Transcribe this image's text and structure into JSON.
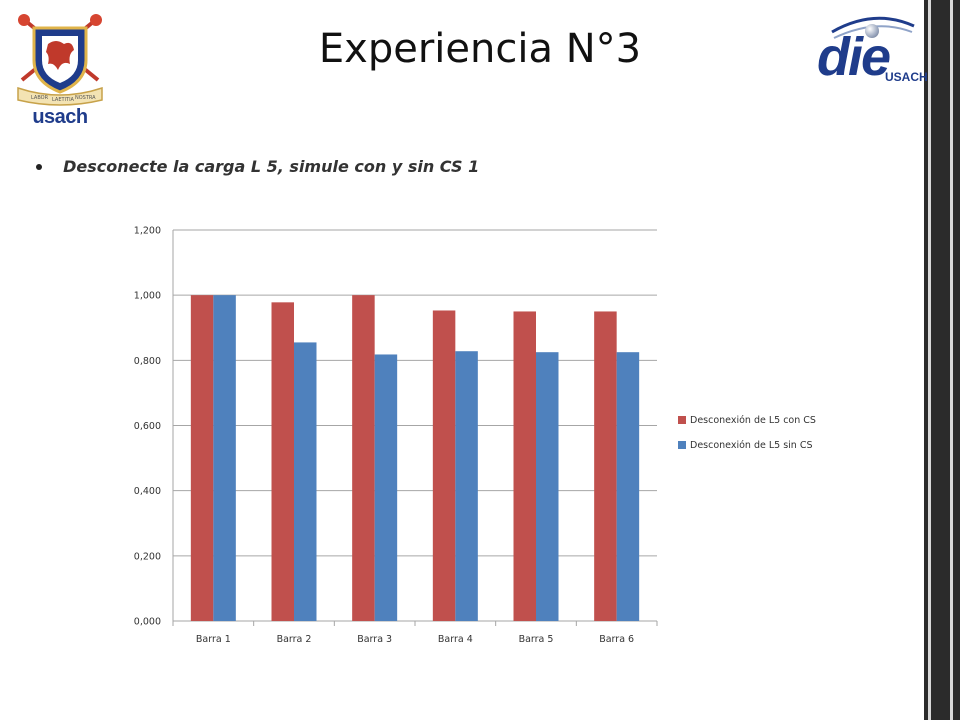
{
  "header": {
    "title": "Experiencia N°3",
    "usach_logo": {
      "wordmark": "usach",
      "motto": [
        "LABOR",
        "LAETITIA",
        "NOSTRA"
      ]
    },
    "die_logo": {
      "word": "die",
      "sub": "USACH"
    }
  },
  "bullet": {
    "text": "Desconecte la carga L 5, simule con y sin CS 1"
  },
  "colors": {
    "series_con": "#c0504d",
    "series_sin": "#4f81bd",
    "grid": "#a6a6a6",
    "axis_text": "#333333"
  },
  "chart_data": {
    "type": "bar",
    "categories": [
      "Barra 1",
      "Barra 2",
      "Barra 3",
      "Barra 4",
      "Barra 5",
      "Barra 6"
    ],
    "series": [
      {
        "name": "Desconexión de L5 con CS",
        "values": [
          1.0,
          0.978,
          1.0,
          0.953,
          0.95,
          0.95
        ],
        "color": "#c0504d"
      },
      {
        "name": "Desconexión de L5 sin CS",
        "values": [
          1.0,
          0.855,
          0.818,
          0.828,
          0.825,
          0.825
        ],
        "color": "#4f81bd"
      }
    ],
    "ylim": [
      0,
      1.2
    ],
    "yticks": [
      "0,000",
      "0,200",
      "0,400",
      "0,600",
      "0,800",
      "1,000",
      "1,200"
    ],
    "grid": true,
    "legend_position": "right"
  }
}
